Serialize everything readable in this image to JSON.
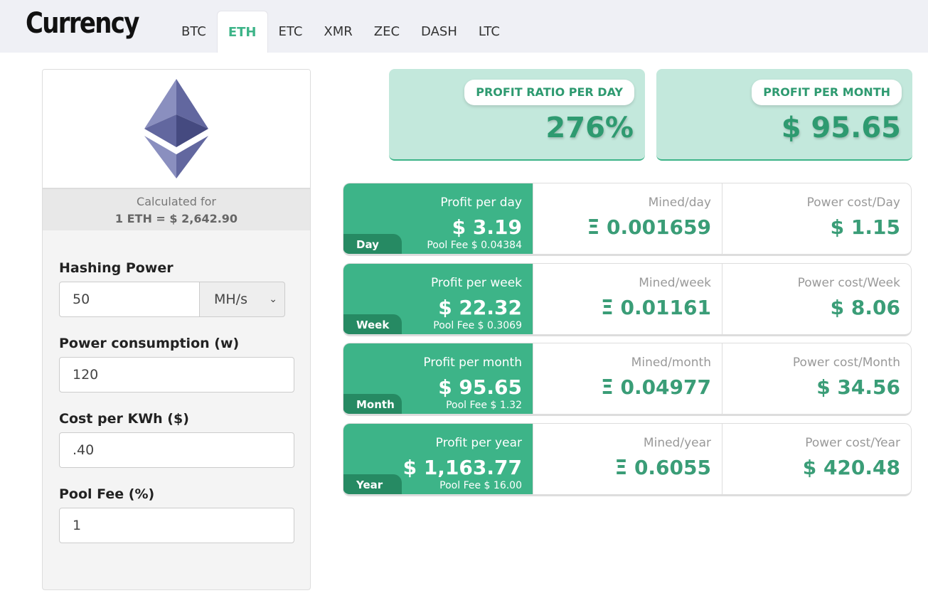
{
  "header": {
    "title": "Currency",
    "tabs": [
      "BTC",
      "ETH",
      "ETC",
      "XMR",
      "ZEC",
      "DASH",
      "LTC"
    ],
    "active_tab": "ETH"
  },
  "left": {
    "calc_label": "Calculated for",
    "calc_rate": "1 ETH = $ 2,642.90",
    "hashing_label": "Hashing Power",
    "hashing_value": "50",
    "hashing_unit": "MH/s",
    "power_label": "Power consumption (w)",
    "power_value": "120",
    "cost_label": "Cost per KWh ($)",
    "cost_value": ".40",
    "fee_label": "Pool Fee (%)",
    "fee_value": "1"
  },
  "summary": {
    "ratio_label": "PROFIT RATIO PER DAY",
    "ratio_value": "276%",
    "month_label": "PROFIT PER MONTH",
    "month_value": "$ 95.65"
  },
  "rows": [
    {
      "badge": "Day",
      "profit_label": "Profit per day",
      "profit": "$ 3.19",
      "fee": "Pool Fee $ 0.04384",
      "mined_label": "Mined/day",
      "mined": "Ξ 0.001659",
      "power_label": "Power cost/Day",
      "power": "$ 1.15"
    },
    {
      "badge": "Week",
      "profit_label": "Profit per week",
      "profit": "$ 22.32",
      "fee": "Pool Fee $ 0.3069",
      "mined_label": "Mined/week",
      "mined": "Ξ 0.01161",
      "power_label": "Power cost/Week",
      "power": "$ 8.06"
    },
    {
      "badge": "Month",
      "profit_label": "Profit per month",
      "profit": "$ 95.65",
      "fee": "Pool Fee $ 1.32",
      "mined_label": "Mined/month",
      "mined": "Ξ 0.04977",
      "power_label": "Power cost/Month",
      "power": "$ 34.56"
    },
    {
      "badge": "Year",
      "profit_label": "Profit per year",
      "profit": "$ 1,163.77",
      "fee": "Pool Fee $ 16.00",
      "mined_label": "Mined/year",
      "mined": "Ξ 0.6055",
      "power_label": "Power cost/Year",
      "power": "$ 420.48"
    }
  ],
  "colors": {
    "accent": "#3db488",
    "badge": "#268a63",
    "card": "#c3e8dc"
  }
}
